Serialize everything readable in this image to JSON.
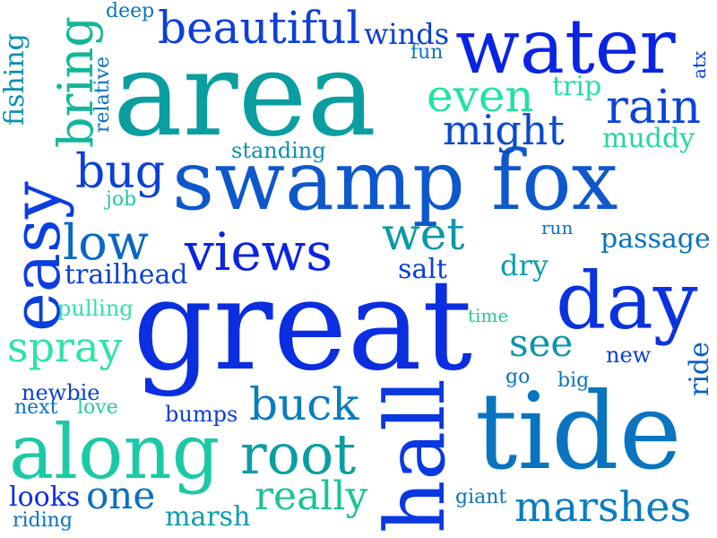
{
  "words": [
    {
      "text": "area",
      "color": "#0a9ea0"
    },
    {
      "text": "swamp fox",
      "color": "#0e58cc"
    },
    {
      "text": "great",
      "color": "#0a2ee0"
    },
    {
      "text": "tide",
      "color": "#0a74c0"
    },
    {
      "text": "water",
      "color": "#0a24e4"
    },
    {
      "text": "along",
      "color": "#1cc9a6"
    },
    {
      "text": "day",
      "color": "#0a32de"
    },
    {
      "text": "easy",
      "color": "#0a3ee0"
    },
    {
      "text": "hall",
      "color": "#0a38e0"
    },
    {
      "text": "beautiful",
      "color": "#0c40d8"
    },
    {
      "text": "views",
      "color": "#0a24e2"
    },
    {
      "text": "root",
      "color": "#0a9ea2"
    },
    {
      "text": "bring",
      "color": "#14b69a"
    },
    {
      "text": "even",
      "color": "#22e2a2"
    },
    {
      "text": "rain",
      "color": "#0a44d8"
    },
    {
      "text": "might",
      "color": "#0a4acc"
    },
    {
      "text": "bug",
      "color": "#0a40d6"
    },
    {
      "text": "low",
      "color": "#0a68c4"
    },
    {
      "text": "wet",
      "color": "#0a98a8"
    },
    {
      "text": "buck",
      "color": "#0a7cc0"
    },
    {
      "text": "spray",
      "color": "#30e2a6"
    },
    {
      "text": "marshes",
      "color": "#0a7cc2"
    },
    {
      "text": "really",
      "color": "#1cc29c"
    },
    {
      "text": "one",
      "color": "#0a6fc2"
    },
    {
      "text": "see",
      "color": "#0a94b0"
    },
    {
      "text": "passage",
      "color": "#0a74c0"
    },
    {
      "text": "trailhead",
      "color": "#0a40d6"
    },
    {
      "text": "dry",
      "color": "#0a9cb0"
    },
    {
      "text": "winds",
      "color": "#0a3cd8"
    },
    {
      "text": "muddy",
      "color": "#28d4a0"
    },
    {
      "text": "trip",
      "color": "#22e0b0"
    },
    {
      "text": "fishing",
      "color": "#0a8fb0"
    },
    {
      "text": "salt",
      "color": "#0a40d8"
    },
    {
      "text": "marsh",
      "color": "#0a9cb0"
    },
    {
      "text": "looks",
      "color": "#0a2fe0"
    },
    {
      "text": "ride",
      "color": "#0a60c8"
    },
    {
      "text": "new",
      "color": "#0a40d8"
    },
    {
      "text": "bumps",
      "color": "#0a40d8"
    },
    {
      "text": "standing",
      "color": "#0a8fb4"
    },
    {
      "text": "pulling",
      "color": "#34e0a8"
    },
    {
      "text": "newbie",
      "color": "#0a40d8"
    },
    {
      "text": "relative",
      "color": "#0a74c0"
    },
    {
      "text": "giant",
      "color": "#0a74c0"
    },
    {
      "text": "riding",
      "color": "#0a74c0"
    },
    {
      "text": "deep",
      "color": "#0a74c0"
    },
    {
      "text": "fun",
      "color": "#0a74c0"
    },
    {
      "text": "job",
      "color": "#24c7a4"
    },
    {
      "text": "love",
      "color": "#28c7a4"
    },
    {
      "text": "next",
      "color": "#0a74c0"
    },
    {
      "text": "go",
      "color": "#0a74c0"
    },
    {
      "text": "big",
      "color": "#0a74c0"
    },
    {
      "text": "run",
      "color": "#0a74c0"
    },
    {
      "text": "time",
      "color": "#24c7a4"
    },
    {
      "text": "atx",
      "color": "#0a40d8"
    }
  ]
}
